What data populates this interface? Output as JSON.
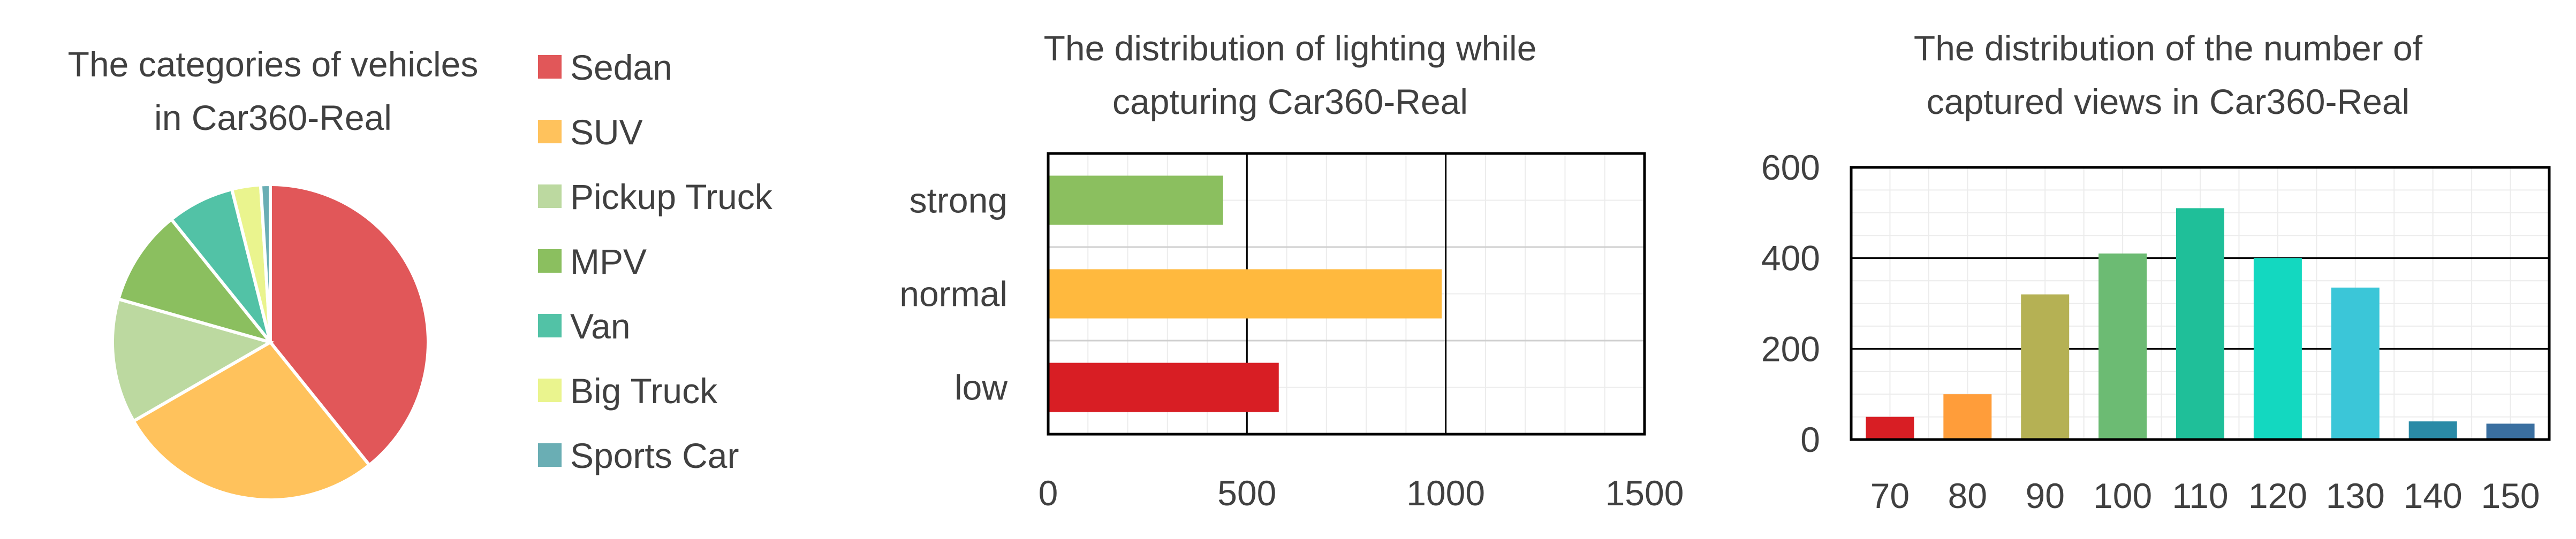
{
  "chart_data": [
    {
      "type": "pie",
      "title": "The categories of vehicles\nin Car360-Real",
      "legend_position": "right",
      "categories": [
        "Sedan",
        "SUV",
        "Pickup Truck",
        "MPV",
        "Van",
        "Big Truck",
        "Sports Car"
      ],
      "values": [
        40,
        28,
        13,
        10,
        7,
        3,
        1
      ],
      "colors": [
        "#e15759",
        "#ffc25c",
        "#bcd9a0",
        "#8bbf5f",
        "#52c2a6",
        "#eaf48e",
        "#6aaeb4"
      ]
    },
    {
      "type": "bar",
      "orientation": "horizontal",
      "title": "The distribution of lighting while\ncapturing Car360-Real",
      "categories": [
        "strong",
        "normal",
        "low"
      ],
      "values": [
        440,
        990,
        580
      ],
      "colors": [
        "#8bbf5f",
        "#ffb93e",
        "#d81e24"
      ],
      "xlim": [
        0,
        1500
      ],
      "xticks": [
        0,
        500,
        1000,
        1500
      ],
      "grid": true
    },
    {
      "type": "bar",
      "title": "The distribution of the number of\ncaptured views in Car360-Real",
      "categories": [
        "70",
        "80",
        "90",
        "100",
        "110",
        "120",
        "130",
        "140",
        "150"
      ],
      "values": [
        50,
        100,
        320,
        410,
        510,
        400,
        335,
        40,
        35
      ],
      "colors": [
        "#d81e24",
        "#ff9d3a",
        "#b5b154",
        "#6cbb73",
        "#1fbf99",
        "#13d8c0",
        "#3bc6d8",
        "#2a8aa6",
        "#3a6fa0"
      ],
      "ylim": [
        0,
        600
      ],
      "yticks": [
        0,
        200,
        400,
        600
      ],
      "grid": true
    }
  ]
}
